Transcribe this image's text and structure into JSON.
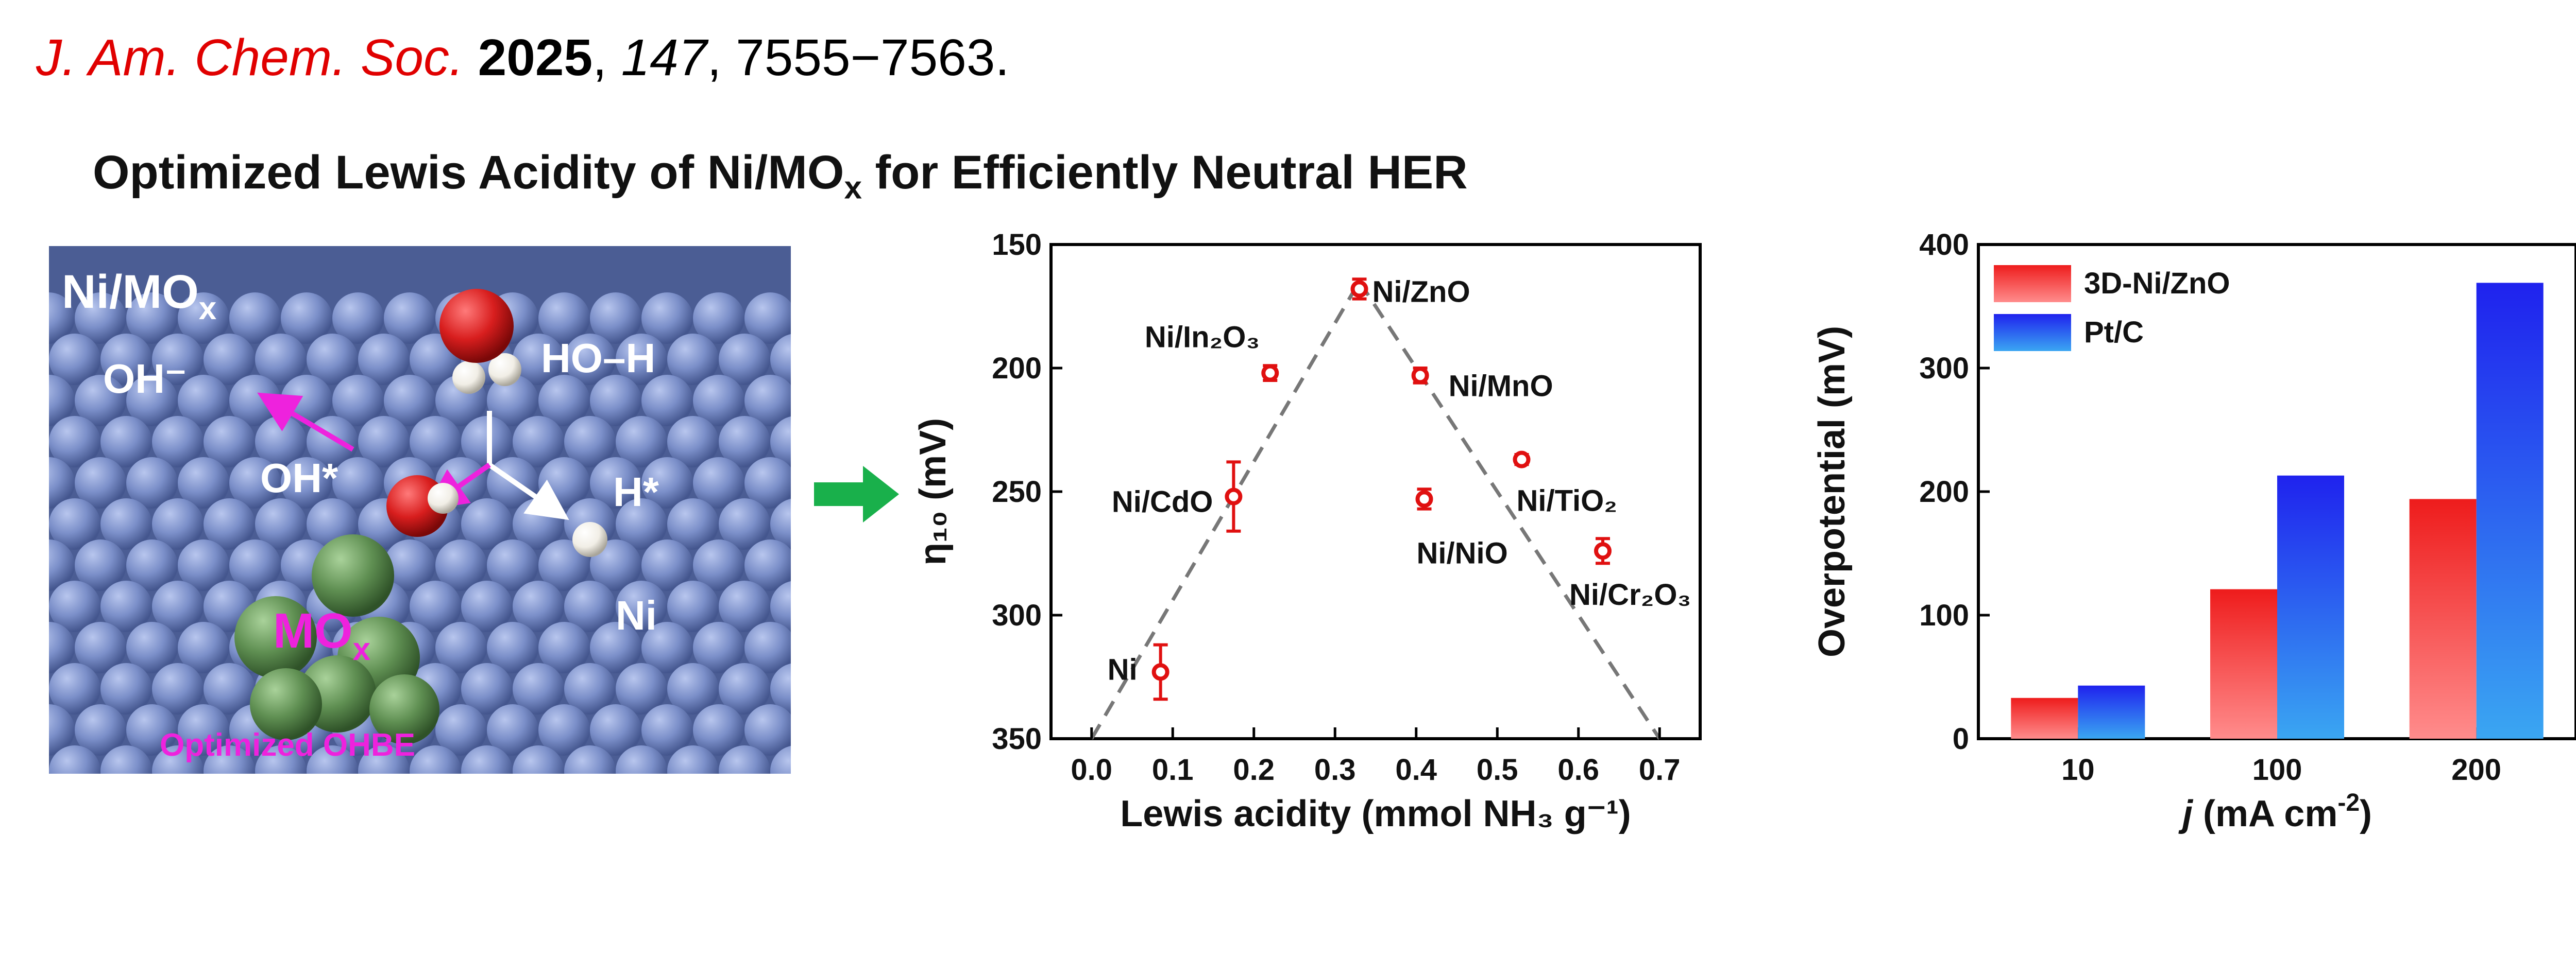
{
  "citation": {
    "journal": "J. Am. Chem. Soc.",
    "year": "2025",
    "volume": "147",
    "pages": "7555−7563."
  },
  "headline": {
    "prefix": "Optimized Lewis Acidity of Ni/MO",
    "subscript": "x",
    "suffix": " for Efficiently Neutral HER"
  },
  "scene": {
    "label_main": "Ni/MO",
    "label_main_sub": "x",
    "label_oh_minus": "OH⁻",
    "label_ho_h": "HO–H",
    "label_oh_star": "OH*",
    "label_h_star": "H*",
    "label_ni": "Ni",
    "label_mox": "MO",
    "label_mox_sub": "x",
    "label_ohbe": "Optimized OHBE",
    "colors": {
      "surface": "#7b8fc9",
      "cluster": "#5f8f52",
      "accent": "#ee22dd",
      "oxygen": "#d81e1e",
      "hydrogen": "#f1eee6"
    }
  },
  "arrow": {
    "color": "#19b04b",
    "icon": "right-arrow-icon"
  },
  "chart_data": [
    {
      "type": "scatter",
      "title": "",
      "xlabel": "Lewis acidity (mmol NH₃ g⁻¹)",
      "ylabel": "η₁₀ (mV)",
      "xlim": [
        -0.05,
        0.75
      ],
      "ylim": [
        150,
        350
      ],
      "y_inverted": true,
      "x_ticks": [
        "0.0",
        "0.1",
        "0.2",
        "0.3",
        "0.4",
        "0.5",
        "0.6",
        "0.7"
      ],
      "y_ticks": [
        "150",
        "200",
        "250",
        "300",
        "350"
      ],
      "grid": false,
      "marker_color": "#e01010",
      "points": [
        {
          "label": "Ni",
          "x": 0.085,
          "y": 323,
          "err": 11
        },
        {
          "label": "Ni/CdO",
          "x": 0.175,
          "y": 252,
          "err": 14
        },
        {
          "label": "Ni/In₂O₃",
          "x": 0.22,
          "y": 202,
          "err": 3
        },
        {
          "label": "Ni/ZnO",
          "x": 0.33,
          "y": 168,
          "err": 4
        },
        {
          "label": "Ni/MnO",
          "x": 0.405,
          "y": 203,
          "err": 3
        },
        {
          "label": "Ni/NiO",
          "x": 0.41,
          "y": 253,
          "err": 4
        },
        {
          "label": "Ni/TiO₂",
          "x": 0.53,
          "y": 237,
          "err": 2
        },
        {
          "label": "Ni/Cr₂O₃",
          "x": 0.63,
          "y": 274,
          "err": 5
        }
      ],
      "guide_lines": [
        {
          "x1": 0.0,
          "y1": 350,
          "x2": 0.33,
          "y2": 165
        },
        {
          "x1": 0.33,
          "y1": 165,
          "x2": 0.7,
          "y2": 350
        }
      ]
    },
    {
      "type": "bar",
      "title": "",
      "xlabel_prefix": "j",
      "xlabel_unit": " (mA cm",
      "xlabel_exp": "-2",
      "xlabel_close": ")",
      "ylabel": "Overpotential (mV)",
      "ylim": [
        0,
        400
      ],
      "y_ticks": [
        "0",
        "100",
        "200",
        "300",
        "400"
      ],
      "categories": [
        "10",
        "100",
        "200"
      ],
      "legend_position": "top-left",
      "series": [
        {
          "name": "3D-Ni/ZnO",
          "values": [
            33,
            121,
            194
          ],
          "color_top": "#ee1c1c",
          "color_bottom": "#ff8c8c"
        },
        {
          "name": "Pt/C",
          "values": [
            43,
            213,
            369
          ],
          "color_top": "#1f22ee",
          "color_bottom": "#3aa6f2"
        }
      ]
    }
  ]
}
